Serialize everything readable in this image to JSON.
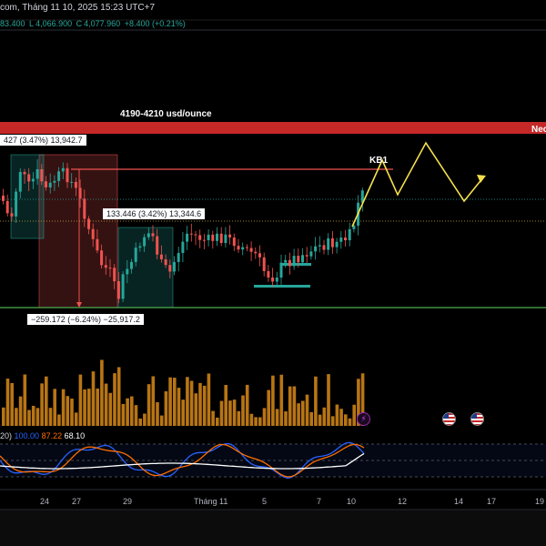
{
  "header": {
    "title": "com, Tháng 11 10, 2025 15:23 UTC+7",
    "ohlc": {
      "open": "83.400",
      "low_label": "L",
      "low": "4,066.900",
      "close_label": "C",
      "close": "4,077.960",
      "change": "+8.400 (+0.21%)"
    }
  },
  "annotations": {
    "zone_label": "4190-4210 usd/ounce",
    "band_label": "Nec",
    "kb_label": "KB1",
    "measure_1": "427 (3.47%) 13,942.7",
    "measure_2": "133.446 (3.42%) 13,344.6",
    "measure_3": "−259.172 (−6.24%) −25,917.2"
  },
  "stochastic": {
    "params": "20)",
    "k_value": "100.00",
    "d_value": "87.22",
    "other_value": "68.10",
    "k_color": "#2962ff",
    "d_color": "#ff6d00"
  },
  "events": {
    "bolt_icon": "lightning-icon",
    "flag_icon": "us-flag-icon"
  },
  "x_axis": [
    "24",
    "27",
    "29",
    "Tháng 11",
    "5",
    "7",
    "10",
    "12",
    "14",
    "17",
    "19"
  ],
  "colors": {
    "bull": "#26a69a",
    "bear": "#ef5350",
    "volume": "#b87514",
    "projection": "#f5e04a",
    "resistance": "#c62828",
    "support": "#4caf50"
  }
}
